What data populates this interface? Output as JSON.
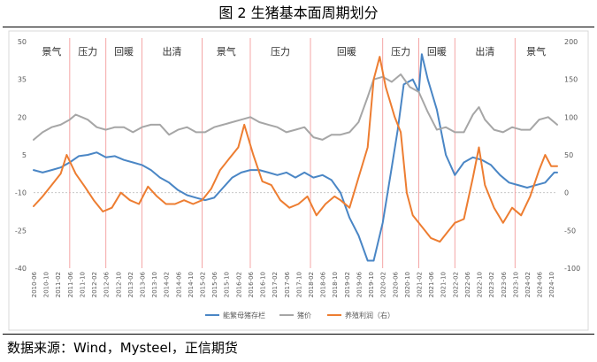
{
  "figure": {
    "title": "图 2 生猪基本面周期划分",
    "source": "数据来源：Wind，Mysteel，正信期货"
  },
  "chart_data": {
    "type": "line",
    "y_left": {
      "min": -40,
      "max": 50,
      "ticks": [
        -40,
        -25,
        -10,
        5,
        20,
        35,
        50
      ]
    },
    "y_right": {
      "min": -100,
      "max": 200,
      "ticks": [
        -100,
        -50,
        0,
        50,
        100,
        150,
        200
      ]
    },
    "x_range": [
      "2010-06",
      "2024-12"
    ],
    "x_tick_labels": [
      "2010-06",
      "2010-10",
      "2011-02",
      "2011-06",
      "2011-10",
      "2012-02",
      "2012-06",
      "2012-10",
      "2013-02",
      "2013-06",
      "2013-10",
      "2014-02",
      "2014-06",
      "2014-10",
      "2015-02",
      "2015-06",
      "2015-10",
      "2016-02",
      "2016-06",
      "2016-10",
      "2017-02",
      "2017-06",
      "2017-10",
      "2018-02",
      "2018-06",
      "2018-10",
      "2019-02",
      "2019-06",
      "2019-10",
      "2020-02",
      "2020-06",
      "2020-10",
      "2021-02",
      "2021-06",
      "2021-10",
      "2022-02",
      "2022-06",
      "2022-10",
      "2023-02",
      "2023-06",
      "2023-10",
      "2024-02",
      "2024-06",
      "2024-10"
    ],
    "phases": [
      {
        "label": "景气",
        "start": "2010-06",
        "end": "2011-06"
      },
      {
        "label": "压力",
        "start": "2011-06",
        "end": "2012-06"
      },
      {
        "label": "回暖",
        "start": "2012-06",
        "end": "2013-06"
      },
      {
        "label": "出清",
        "start": "2013-06",
        "end": "2015-02"
      },
      {
        "label": "景气",
        "start": "2015-02",
        "end": "2016-06"
      },
      {
        "label": "压力",
        "start": "2016-06",
        "end": "2018-02"
      },
      {
        "label": "回暖",
        "start": "2018-02",
        "end": "2020-02"
      },
      {
        "label": "压力",
        "start": "2020-02",
        "end": "2021-02"
      },
      {
        "label": "回暖",
        "start": "2021-02",
        "end": "2022-02"
      },
      {
        "label": "出清",
        "start": "2022-02",
        "end": "2023-10"
      },
      {
        "label": "景气",
        "start": "2023-10",
        "end": "2024-12"
      }
    ],
    "phase_boundaries": [
      "2011-06",
      "2012-06",
      "2013-06",
      "2015-02",
      "2016-06",
      "2018-02",
      "2020-02",
      "2021-02",
      "2022-02",
      "2023-10"
    ],
    "series": [
      {
        "name": "能繁母猪存栏",
        "axis": "left",
        "color": "#4a86c5",
        "points": [
          [
            "2010-06",
            -1
          ],
          [
            "2010-09",
            -2
          ],
          [
            "2010-12",
            -1
          ],
          [
            "2011-03",
            0
          ],
          [
            "2011-06",
            2
          ],
          [
            "2011-09",
            4.5
          ],
          [
            "2011-12",
            5
          ],
          [
            "2012-03",
            6
          ],
          [
            "2012-06",
            4
          ],
          [
            "2012-09",
            4.5
          ],
          [
            "2012-12",
            3
          ],
          [
            "2013-03",
            2
          ],
          [
            "2013-06",
            1
          ],
          [
            "2013-09",
            -1
          ],
          [
            "2013-12",
            -4
          ],
          [
            "2014-03",
            -6
          ],
          [
            "2014-06",
            -9
          ],
          [
            "2014-09",
            -11
          ],
          [
            "2014-12",
            -12
          ],
          [
            "2015-03",
            -13
          ],
          [
            "2015-06",
            -12
          ],
          [
            "2015-09",
            -8
          ],
          [
            "2015-12",
            -4
          ],
          [
            "2016-03",
            -2
          ],
          [
            "2016-06",
            -1
          ],
          [
            "2016-09",
            -1
          ],
          [
            "2016-12",
            -2
          ],
          [
            "2017-03",
            -3
          ],
          [
            "2017-06",
            -2
          ],
          [
            "2017-09",
            -4
          ],
          [
            "2017-12",
            -2
          ],
          [
            "2018-03",
            -4
          ],
          [
            "2018-06",
            -3
          ],
          [
            "2018-09",
            -5
          ],
          [
            "2018-12",
            -10
          ],
          [
            "2019-03",
            -20
          ],
          [
            "2019-06",
            -27
          ],
          [
            "2019-09",
            -37
          ],
          [
            "2019-11",
            -37
          ],
          [
            "2020-02",
            -22
          ],
          [
            "2020-05",
            0
          ],
          [
            "2020-07",
            15
          ],
          [
            "2020-09",
            33
          ],
          [
            "2020-12",
            35
          ],
          [
            "2021-02",
            30
          ],
          [
            "2021-03",
            45
          ],
          [
            "2021-05",
            35
          ],
          [
            "2021-08",
            23
          ],
          [
            "2021-11",
            5
          ],
          [
            "2022-02",
            -3
          ],
          [
            "2022-05",
            2
          ],
          [
            "2022-08",
            4
          ],
          [
            "2022-11",
            3
          ],
          [
            "2023-02",
            1
          ],
          [
            "2023-05",
            -3
          ],
          [
            "2023-08",
            -6
          ],
          [
            "2023-11",
            -7
          ],
          [
            "2024-02",
            -8
          ],
          [
            "2024-05",
            -7
          ],
          [
            "2024-08",
            -6
          ],
          [
            "2024-11",
            -2
          ],
          [
            "2024-12",
            -2
          ]
        ]
      },
      {
        "name": "猪价",
        "axis": "left",
        "color": "#a6a6a6",
        "points": [
          [
            "2010-06",
            11
          ],
          [
            "2010-09",
            14
          ],
          [
            "2010-12",
            16
          ],
          [
            "2011-03",
            17
          ],
          [
            "2011-06",
            19
          ],
          [
            "2011-08",
            21
          ],
          [
            "2011-10",
            20
          ],
          [
            "2011-12",
            19
          ],
          [
            "2012-03",
            16
          ],
          [
            "2012-06",
            15
          ],
          [
            "2012-09",
            16
          ],
          [
            "2012-12",
            16
          ],
          [
            "2013-03",
            14
          ],
          [
            "2013-06",
            16
          ],
          [
            "2013-09",
            17
          ],
          [
            "2013-12",
            17
          ],
          [
            "2014-03",
            13
          ],
          [
            "2014-06",
            15
          ],
          [
            "2014-09",
            16
          ],
          [
            "2014-12",
            14
          ],
          [
            "2015-03",
            14
          ],
          [
            "2015-06",
            16
          ],
          [
            "2015-09",
            17
          ],
          [
            "2015-12",
            18
          ],
          [
            "2016-03",
            19
          ],
          [
            "2016-06",
            20
          ],
          [
            "2016-09",
            18
          ],
          [
            "2016-12",
            17
          ],
          [
            "2017-03",
            16
          ],
          [
            "2017-06",
            14
          ],
          [
            "2017-09",
            15
          ],
          [
            "2017-12",
            16
          ],
          [
            "2018-03",
            12
          ],
          [
            "2018-06",
            11
          ],
          [
            "2018-09",
            13
          ],
          [
            "2018-12",
            13
          ],
          [
            "2019-03",
            14
          ],
          [
            "2019-06",
            18
          ],
          [
            "2019-09",
            28
          ],
          [
            "2019-11",
            35
          ],
          [
            "2020-02",
            36
          ],
          [
            "2020-05",
            34
          ],
          [
            "2020-08",
            37
          ],
          [
            "2020-11",
            32
          ],
          [
            "2021-02",
            30
          ],
          [
            "2021-05",
            22
          ],
          [
            "2021-08",
            15
          ],
          [
            "2021-11",
            16
          ],
          [
            "2022-02",
            14
          ],
          [
            "2022-05",
            14
          ],
          [
            "2022-08",
            21
          ],
          [
            "2022-10",
            24
          ],
          [
            "2022-12",
            19
          ],
          [
            "2023-03",
            15
          ],
          [
            "2023-06",
            14
          ],
          [
            "2023-09",
            16
          ],
          [
            "2023-12",
            15
          ],
          [
            "2024-03",
            15
          ],
          [
            "2024-06",
            19
          ],
          [
            "2024-09",
            20
          ],
          [
            "2024-12",
            17
          ]
        ]
      },
      {
        "name": "养殖利润（右）",
        "axis": "right",
        "color": "#ed7d31",
        "points": [
          [
            "2010-06",
            -18
          ],
          [
            "2010-09",
            -5
          ],
          [
            "2010-12",
            10
          ],
          [
            "2011-03",
            25
          ],
          [
            "2011-05",
            50
          ],
          [
            "2011-08",
            25
          ],
          [
            "2011-11",
            8
          ],
          [
            "2012-02",
            -10
          ],
          [
            "2012-05",
            -25
          ],
          [
            "2012-08",
            -20
          ],
          [
            "2012-11",
            0
          ],
          [
            "2013-02",
            -10
          ],
          [
            "2013-05",
            -15
          ],
          [
            "2013-08",
            8
          ],
          [
            "2013-11",
            -5
          ],
          [
            "2014-02",
            -15
          ],
          [
            "2014-05",
            -15
          ],
          [
            "2014-08",
            -10
          ],
          [
            "2014-11",
            -15
          ],
          [
            "2015-02",
            -10
          ],
          [
            "2015-05",
            5
          ],
          [
            "2015-08",
            30
          ],
          [
            "2015-11",
            45
          ],
          [
            "2016-02",
            60
          ],
          [
            "2016-04",
            90
          ],
          [
            "2016-07",
            50
          ],
          [
            "2016-10",
            15
          ],
          [
            "2017-01",
            10
          ],
          [
            "2017-04",
            -10
          ],
          [
            "2017-07",
            -20
          ],
          [
            "2017-10",
            -15
          ],
          [
            "2018-01",
            -5
          ],
          [
            "2018-04",
            -30
          ],
          [
            "2018-07",
            -15
          ],
          [
            "2018-10",
            -5
          ],
          [
            "2018-12",
            -10
          ],
          [
            "2019-03",
            -20
          ],
          [
            "2019-06",
            20
          ],
          [
            "2019-09",
            60
          ],
          [
            "2019-11",
            150
          ],
          [
            "2020-01",
            180
          ],
          [
            "2020-03",
            140
          ],
          [
            "2020-06",
            100
          ],
          [
            "2020-08",
            80
          ],
          [
            "2020-10",
            0
          ],
          [
            "2020-12",
            -30
          ],
          [
            "2021-02",
            -40
          ],
          [
            "2021-04",
            -50
          ],
          [
            "2021-06",
            -60
          ],
          [
            "2021-09",
            -65
          ],
          [
            "2021-12",
            -50
          ],
          [
            "2022-02",
            -40
          ],
          [
            "2022-05",
            -35
          ],
          [
            "2022-08",
            20
          ],
          [
            "2022-10",
            60
          ],
          [
            "2022-12",
            10
          ],
          [
            "2023-03",
            -20
          ],
          [
            "2023-06",
            -40
          ],
          [
            "2023-09",
            -20
          ],
          [
            "2023-12",
            -30
          ],
          [
            "2024-03",
            -5
          ],
          [
            "2024-06",
            30
          ],
          [
            "2024-08",
            50
          ],
          [
            "2024-10",
            35
          ],
          [
            "2024-12",
            35
          ]
        ]
      }
    ]
  }
}
